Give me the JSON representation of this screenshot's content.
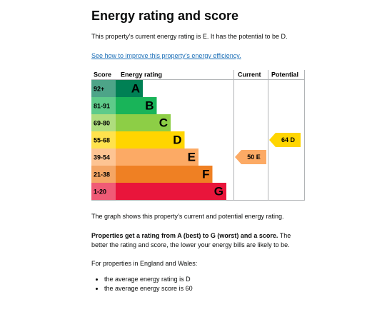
{
  "header": {
    "title": "Energy rating and score"
  },
  "intro": "This property’s current energy rating is E. It has the potential to be D.",
  "link": "See how to improve this property’s energy efficiency.",
  "table": {
    "headers": [
      "Score",
      "Energy rating",
      "Current",
      "Potential"
    ],
    "bands": [
      {
        "score": "92+",
        "letter": "A",
        "color": "#008054",
        "light": "#4da488"
      },
      {
        "score": "81-91",
        "letter": "B",
        "color": "#19b459",
        "light": "#5ecb8a"
      },
      {
        "score": "69-80",
        "letter": "C",
        "color": "#8dce46",
        "light": "#afdd7e"
      },
      {
        "score": "55-68",
        "letter": "D",
        "color": "#ffd500",
        "light": "#ffe24d"
      },
      {
        "score": "39-54",
        "letter": "E",
        "color": "#fcaa65",
        "light": "#fdc493"
      },
      {
        "score": "21-38",
        "letter": "F",
        "color": "#ef8023",
        "light": "#f4a665"
      },
      {
        "score": "1-20",
        "letter": "G",
        "color": "#e9153b",
        "light": "#f05b76"
      }
    ],
    "current": {
      "score": 50,
      "letter": "E"
    },
    "potential": {
      "score": 64,
      "letter": "D"
    }
  },
  "graph_note": "The graph shows this property’s current and potential energy rating.",
  "rating_bold": "Properties get a rating from A (best) to G (worst) and a score.",
  "rating_rest": " The better the rating and score, the lower your energy bills are likely to be.",
  "regions": "For properties in England and Wales:",
  "bullets": [
    "the average energy rating is D",
    "the average energy score is 60"
  ]
}
